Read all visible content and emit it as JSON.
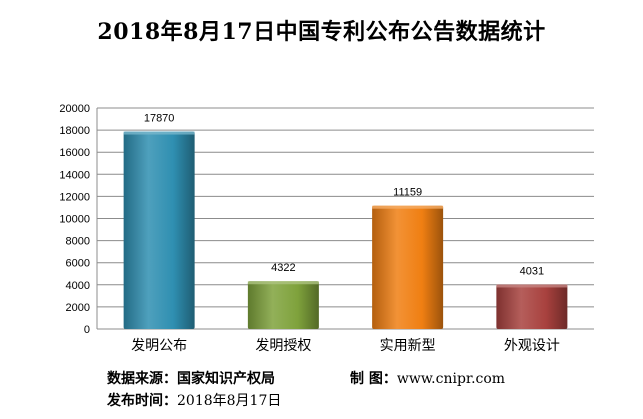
{
  "chart_data": {
    "type": "bar",
    "title": "2018年8月17日中国专利公布公告数据统计",
    "categories": [
      "发明公布",
      "发明授权",
      "实用新型",
      "外观设计"
    ],
    "values": [
      17870,
      4322,
      11159,
      4031
    ],
    "ylim": [
      0,
      20000
    ],
    "yticks": [
      0,
      2000,
      4000,
      6000,
      8000,
      10000,
      12000,
      14000,
      16000,
      18000,
      20000
    ],
    "xlabel": "",
    "ylabel": "",
    "grid": true,
    "legend": "none",
    "colors": [
      "#2f8fb1",
      "#7fa23c",
      "#f07f12",
      "#a8413e"
    ],
    "data_labels": true
  },
  "footer": {
    "source_label": "数据来源：",
    "source_value": "国家知识产权局",
    "maker_label": "制 图：",
    "maker_value": "www.cnipr.com",
    "date_label": "发布时间：",
    "date_value": "2018年8月17日"
  }
}
